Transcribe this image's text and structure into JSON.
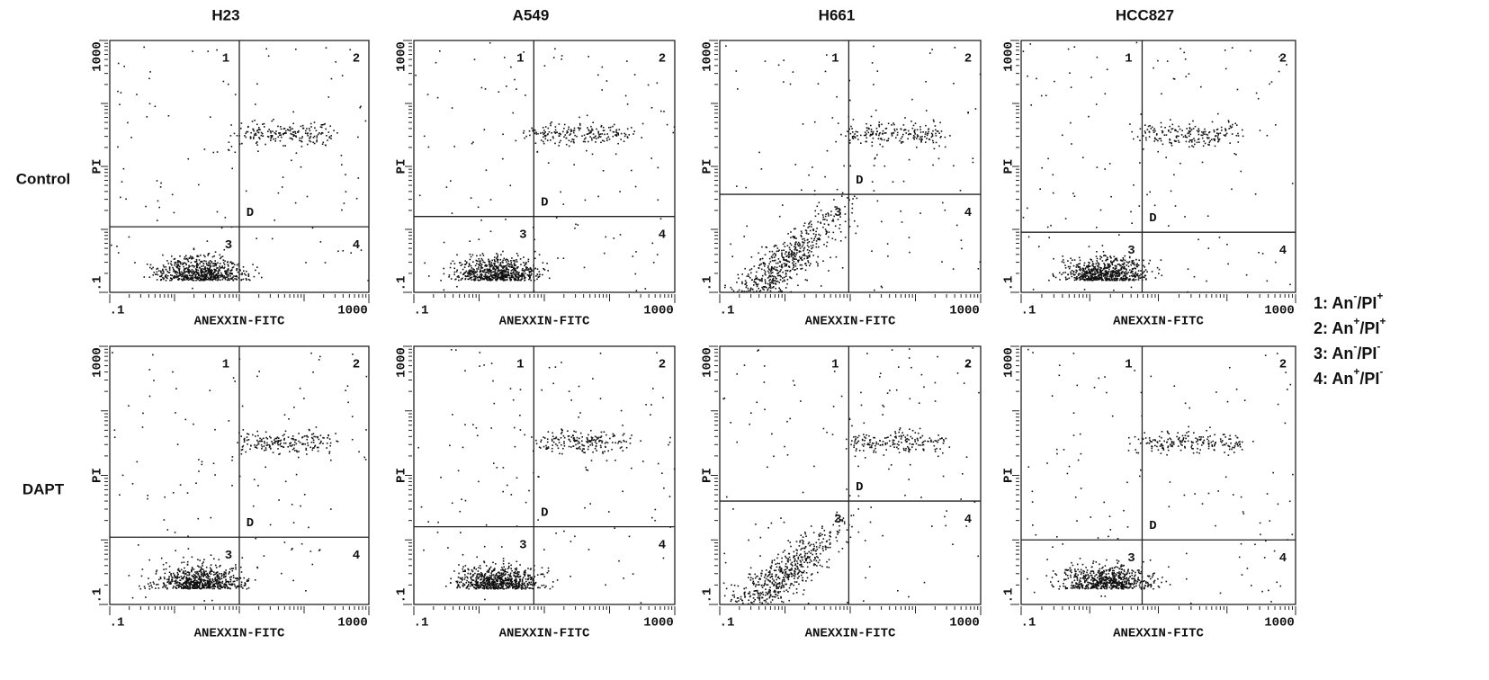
{
  "column_titles": [
    "H23",
    "A549",
    "H661",
    "HCC827"
  ],
  "row_labels": [
    "Control",
    "DAPT"
  ],
  "legend": [
    {
      "prefix": "1: An",
      "a": "-",
      "mid": "/PI",
      "b": "+"
    },
    {
      "prefix": "2: An",
      "a": "+",
      "mid": "/PI",
      "b": "+"
    },
    {
      "prefix": "3: An",
      "a": "-",
      "mid": "/PI",
      "b": "-"
    },
    {
      "prefix": "4: An",
      "a": "+",
      "mid": "/PI",
      "b": "-"
    }
  ],
  "chart_data": [
    {
      "type": "scatter",
      "xlabel": "ANEXXIN-FITC",
      "ylabel": "PI",
      "xscale": "log",
      "yscale": "log",
      "xlim": [
        0.1,
        1000
      ],
      "ylim": [
        0.1,
        1000
      ],
      "xticks": [
        {
          "value": 0.1,
          "label": ".1"
        },
        1000
      ],
      "yticks": [
        {
          "value": 0.1,
          "label": ".1"
        },
        1000
      ],
      "gate": {
        "x": 10,
        "y": 1.1
      },
      "gate_label": "D",
      "quadrants": [
        "1",
        "2",
        "3",
        "4"
      ]
    },
    {
      "type": "scatter",
      "xlabel": "ANEXXIN-FITC",
      "ylabel": "PI",
      "xscale": "log",
      "yscale": "log",
      "xlim": [
        0.1,
        1000
      ],
      "ylim": [
        0.1,
        1000
      ],
      "xticks": [
        {
          "value": 0.1,
          "label": ".1"
        },
        1000
      ],
      "yticks": [
        {
          "value": 0.1,
          "label": ".1"
        },
        1000
      ],
      "gate": {
        "x": 6.9,
        "y": 1.6
      },
      "gate_label": "D",
      "quadrants": [
        "1",
        "2",
        "3",
        "4"
      ]
    },
    {
      "type": "scatter",
      "xlabel": "ANEXXIN-FITC",
      "ylabel": "PI",
      "xscale": "log",
      "yscale": "log",
      "xlim": [
        0.1,
        1000
      ],
      "ylim": [
        0.1,
        1000
      ],
      "xticks": [
        {
          "value": 0.1,
          "label": ".1"
        },
        1000
      ],
      "yticks": [
        {
          "value": 0.1,
          "label": ".1"
        },
        1000
      ],
      "gate": {
        "x": 9.5,
        "y": 3.6
      },
      "gate_label": "D",
      "quadrants": [
        "1",
        "2",
        "3",
        "4"
      ]
    },
    {
      "type": "scatter",
      "xlabel": "ANEXXIN-FITC",
      "ylabel": "PI",
      "xscale": "log",
      "yscale": "log",
      "xlim": [
        0.1,
        1000
      ],
      "ylim": [
        0.1,
        1000
      ],
      "xticks": [
        {
          "value": 0.1,
          "label": ".1"
        },
        1000
      ],
      "yticks": [
        {
          "value": 0.1,
          "label": ".1"
        },
        1000
      ],
      "gate": {
        "x": 5.8,
        "y": 0.9
      },
      "gate_label": "D",
      "quadrants": [
        "1",
        "2",
        "3",
        "4"
      ]
    },
    {
      "type": "scatter",
      "xlabel": "ANEXXIN-FITC",
      "ylabel": "PI",
      "xscale": "log",
      "yscale": "log",
      "xlim": [
        0.1,
        1000
      ],
      "ylim": [
        0.1,
        1000
      ],
      "xticks": [
        {
          "value": 0.1,
          "label": ".1"
        },
        1000
      ],
      "yticks": [
        {
          "value": 0.1,
          "label": ".1"
        },
        1000
      ],
      "gate": {
        "x": 10,
        "y": 1.1
      },
      "gate_label": "D",
      "quadrants": [
        "1",
        "2",
        "3",
        "4"
      ]
    },
    {
      "type": "scatter",
      "xlabel": "ANEXXIN-FITC",
      "ylabel": "PI",
      "xscale": "log",
      "yscale": "log",
      "xlim": [
        0.1,
        1000
      ],
      "ylim": [
        0.1,
        1000
      ],
      "xticks": [
        {
          "value": 0.1,
          "label": ".1"
        },
        1000
      ],
      "yticks": [
        {
          "value": 0.1,
          "label": ".1"
        },
        1000
      ],
      "gate": {
        "x": 6.9,
        "y": 1.6
      },
      "gate_label": "D",
      "quadrants": [
        "1",
        "2",
        "3",
        "4"
      ]
    },
    {
      "type": "scatter",
      "xlabel": "ANEXXIN-FITC",
      "ylabel": "PI",
      "xscale": "log",
      "yscale": "log",
      "xlim": [
        0.1,
        1000
      ],
      "ylim": [
        0.1,
        1000
      ],
      "xticks": [
        {
          "value": 0.1,
          "label": ".1"
        },
        1000
      ],
      "yticks": [
        {
          "value": 0.1,
          "label": ".1"
        },
        1000
      ],
      "gate": {
        "x": 9.5,
        "y": 4
      },
      "gate_label": "D",
      "quadrants": [
        "1",
        "2",
        "3",
        "4"
      ]
    },
    {
      "type": "scatter",
      "xlabel": "ANEXXIN-FITC",
      "ylabel": "PI",
      "xscale": "log",
      "yscale": "log",
      "xlim": [
        0.1,
        1000
      ],
      "ylim": [
        0.1,
        1000
      ],
      "xticks": [
        {
          "value": 0.1,
          "label": ".1"
        },
        1000
      ],
      "yticks": [
        {
          "value": 0.1,
          "label": ".1"
        },
        1000
      ],
      "gate": {
        "x": 5.8,
        "y": 1
      },
      "gate_label": "D",
      "quadrants": [
        "1",
        "2",
        "3",
        "4"
      ]
    }
  ]
}
